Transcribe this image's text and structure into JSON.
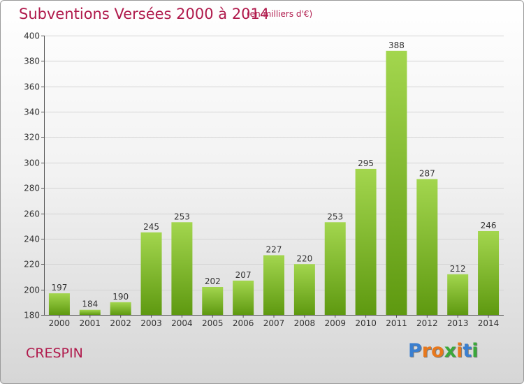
{
  "header": {
    "title": "Subventions Versées 2000 à 2014",
    "subtitle": "(en milliers d'€)"
  },
  "footer": {
    "place": "CRESPIN",
    "logo": "Proxiti",
    "logo_colors": [
      "#3a7fd0",
      "#e8781c",
      "#e8781c",
      "#3aa83a",
      "#e8781c",
      "#3a7fd0",
      "#3aa83a"
    ]
  },
  "colors": {
    "text_accent": "#b01a4c",
    "bar_light": "#9fd24a",
    "bar_dark": "#5f9a12"
  },
  "chart_data": {
    "type": "bar",
    "title": "Subventions Versées 2000 à 2014",
    "subtitle": "(en milliers d'€)",
    "categories": [
      "2000",
      "2001",
      "2002",
      "2003",
      "2004",
      "2005",
      "2006",
      "2007",
      "2008",
      "2009",
      "2010",
      "2011",
      "2012",
      "2013",
      "2014"
    ],
    "values": [
      197,
      184,
      190,
      245,
      253,
      202,
      207,
      227,
      220,
      253,
      295,
      388,
      287,
      212,
      246
    ],
    "ylim": [
      180,
      400
    ],
    "yticks": [
      180,
      200,
      220,
      240,
      260,
      280,
      300,
      320,
      340,
      360,
      380,
      400
    ],
    "grid": true,
    "data_labels": true
  }
}
